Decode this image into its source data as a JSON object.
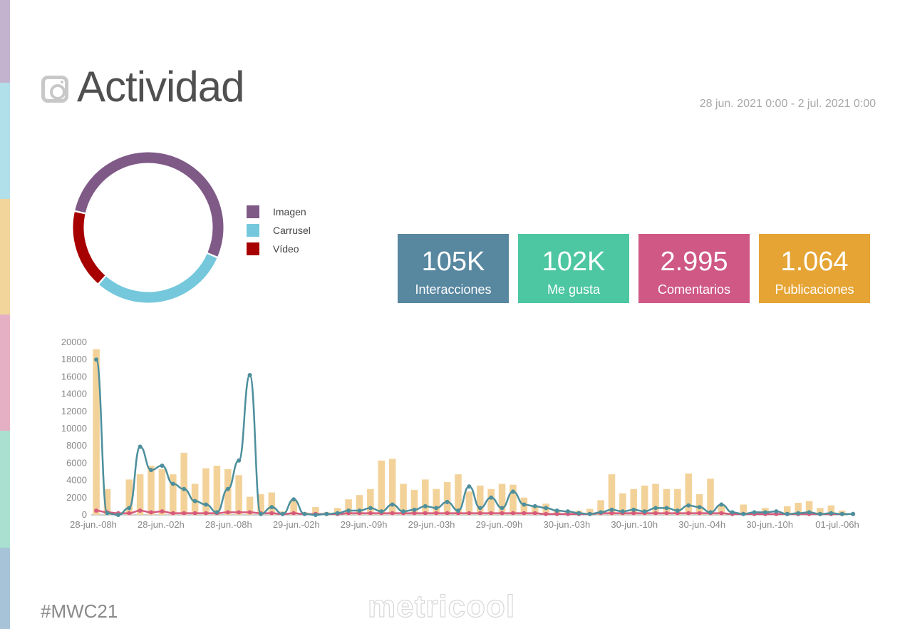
{
  "side_colors": [
    "#c3b3cf",
    "#b2e0ea",
    "#f2d59b",
    "#e6b0c4",
    "#a9e0cf",
    "#a7c3d8"
  ],
  "header": {
    "title": "Actividad",
    "icon": "instagram-icon"
  },
  "date_range": "28 jun. 2021 0:00 - 2 jul. 2021 0:00",
  "donut": {
    "slices": [
      {
        "label": "Imagen",
        "value": 53,
        "color": "#7f5a87"
      },
      {
        "label": "Carrusel",
        "value": 30,
        "color": "#75c8dc"
      },
      {
        "label": "Vídeo",
        "value": 17,
        "color": "#a70000"
      }
    ]
  },
  "kpis": [
    {
      "value": "105K",
      "label": "Interacciones",
      "color": "#5887a0"
    },
    {
      "value": "102K",
      "label": "Me gusta",
      "color": "#4dc7a1"
    },
    {
      "value": "2.995",
      "label": "Comentarios",
      "color": "#cf5884"
    },
    {
      "value": "1.064",
      "label": "Publicaciones",
      "color": "#e5a434"
    }
  ],
  "footer": {
    "hashtag": "#MWC21",
    "brand": "metricool"
  },
  "chart_data": {
    "type": "bar",
    "yticks": [
      "20000",
      "18000",
      "16000",
      "14000",
      "12000",
      "10000",
      "8000",
      "6000",
      "4000",
      "2000",
      "0"
    ],
    "xticks": [
      "28-jun.-08h",
      "28-jun.-02h",
      "28-jun.-08h",
      "29-jun.-02h",
      "29-jun.-09h",
      "29-jun.-03h",
      "29-jun.-09h",
      "30-jun.-03h",
      "30-jun.-10h",
      "30-jun.-04h",
      "30-jun.-10h",
      "01-jul.-06h"
    ],
    "ylim": [
      0,
      20000
    ],
    "grid": false,
    "colors": {
      "bars": "#f3d29a",
      "teal": "#4d8f9c",
      "pink": "#d75a7c"
    },
    "bars": [
      19200,
      3000,
      0,
      4100,
      4700,
      5700,
      5300,
      4700,
      7200,
      3600,
      5400,
      5700,
      5300,
      4600,
      2100,
      2400,
      2600,
      400,
      1800,
      300,
      900,
      300,
      800,
      1800,
      2300,
      3000,
      6300,
      6500,
      3600,
      2900,
      4100,
      3000,
      3800,
      4700,
      2700,
      3400,
      3000,
      3600,
      3500,
      2000,
      1100,
      1300,
      600,
      400,
      500,
      700,
      1700,
      4700,
      2500,
      3000,
      3400,
      3600,
      3000,
      3000,
      4800,
      2400,
      4200,
      1200,
      300,
      1200,
      400,
      800,
      200,
      1000,
      1400,
      1600,
      800,
      1100,
      500
    ],
    "series": [
      {
        "values": [
          18000,
          200,
          0,
          800,
          7900,
          5200,
          5700,
          3600,
          3000,
          1600,
          1200,
          300,
          3000,
          6300,
          16200,
          100,
          900,
          100,
          1800,
          100,
          0,
          100,
          200,
          500,
          500,
          800,
          400,
          1200,
          400,
          600,
          1000,
          800,
          1500,
          500,
          3300,
          800,
          2000,
          800,
          2700,
          1200,
          1000,
          800,
          500,
          400,
          200,
          100,
          300,
          600,
          400,
          600,
          400,
          800,
          800,
          500,
          1100,
          900,
          300,
          1200,
          300,
          100,
          300,
          300,
          400,
          100,
          200,
          300,
          100,
          200,
          100,
          100
        ]
      },
      {
        "values": [
          500,
          300,
          200,
          200,
          500,
          300,
          400,
          200,
          200,
          200,
          200,
          200,
          300,
          300,
          300,
          200,
          200,
          100,
          200,
          100,
          100,
          100,
          100,
          200,
          200,
          200,
          200,
          200,
          200,
          200,
          200,
          200,
          200,
          200,
          200,
          200,
          200,
          200,
          200,
          200,
          200,
          100,
          100,
          100,
          100,
          100,
          200,
          200,
          200,
          200,
          200,
          200,
          200,
          200,
          200,
          200,
          200,
          200,
          100,
          100,
          100,
          100,
          100,
          100,
          100,
          100,
          100,
          100,
          100,
          100
        ]
      }
    ]
  }
}
